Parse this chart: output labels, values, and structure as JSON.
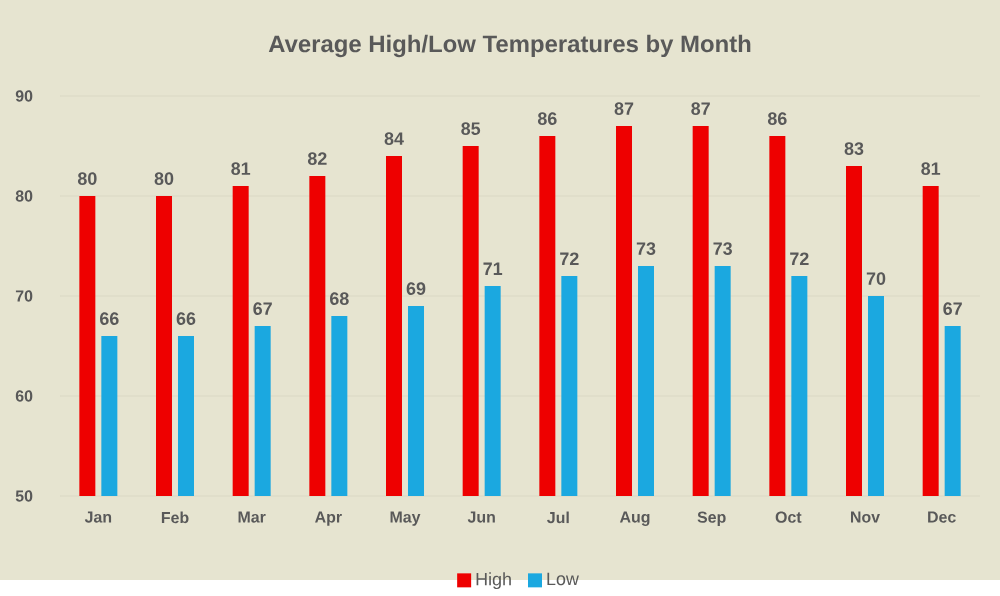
{
  "chart_data": {
    "type": "bar",
    "title": "Average High/Low Temperatures by Month",
    "categories": [
      "Jan",
      "Feb",
      "Mar",
      "Apr",
      "May",
      "Jun",
      "Jul",
      "Aug",
      "Sep",
      "Oct",
      "Nov",
      "Dec"
    ],
    "series": [
      {
        "name": "High",
        "color": "#ee0000",
        "values": [
          80,
          80,
          81,
          82,
          84,
          85,
          86,
          87,
          87,
          86,
          83,
          81
        ]
      },
      {
        "name": "Low",
        "color": "#1ba8e0",
        "values": [
          66,
          66,
          67,
          68,
          69,
          71,
          72,
          73,
          73,
          72,
          70,
          67
        ]
      }
    ],
    "ylim": [
      50,
      90
    ],
    "yticks": [
      50,
      60,
      70,
      80,
      90
    ],
    "grid": "y",
    "legend": "bottom",
    "data_labels": true
  }
}
